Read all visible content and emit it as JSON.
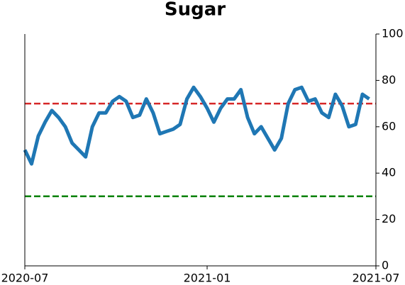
{
  "chart_data": {
    "type": "line",
    "title": "Sugar",
    "categories": [
      "2020-07",
      null,
      null,
      null,
      null,
      null,
      null,
      null,
      null,
      null,
      null,
      null,
      null,
      null,
      null,
      null,
      null,
      null,
      null,
      null,
      null,
      null,
      null,
      null,
      null,
      null,
      null,
      "2021-01",
      null,
      null,
      null,
      null,
      null,
      null,
      null,
      null,
      null,
      null,
      null,
      null,
      null,
      null,
      null,
      null,
      null,
      null,
      null,
      null,
      null,
      null,
      null,
      null,
      "2021-07"
    ],
    "series": [
      {
        "color": "#1f77b4",
        "values": [
          50,
          44,
          56,
          62,
          67,
          64,
          60,
          53,
          50,
          47,
          60,
          66,
          66,
          71,
          73,
          71,
          64,
          65,
          72,
          66,
          57,
          58,
          59,
          61,
          72,
          77,
          73,
          68,
          62,
          68,
          72,
          72,
          76,
          64,
          57,
          60,
          55,
          50,
          55,
          70,
          76,
          77,
          71,
          72,
          66,
          64,
          74,
          69,
          60,
          61,
          74,
          72,
          null
        ]
      }
    ],
    "ylim": [
      0,
      100
    ],
    "yticks": [
      0,
      20,
      40,
      60,
      80,
      100
    ],
    "y_axis_side": "right",
    "reference_lines": [
      {
        "value": 70,
        "color": "#d62728"
      },
      {
        "value": 30,
        "color": "#008000"
      }
    ]
  }
}
